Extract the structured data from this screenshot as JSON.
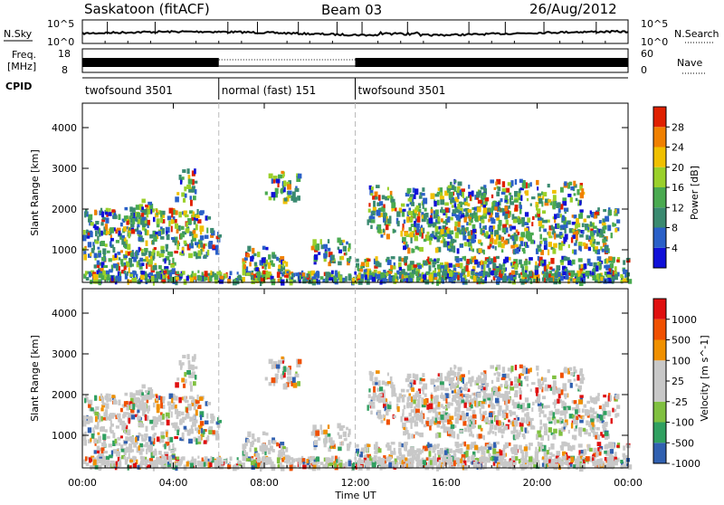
{
  "header": {
    "station": "Saskatoon (fitACF)",
    "beam": "Beam 03",
    "date": "26/Aug/2012"
  },
  "panel_labels": {
    "nsky": "N.Sky",
    "nsearch": "N.Search",
    "freq_line1": "Freq.",
    "freq_line2": "[MHz]",
    "nave": "Nave",
    "cpid": "CPID"
  },
  "noise_ticks_left": [
    "10^5",
    "10^0"
  ],
  "noise_ticks_right": [
    "10^5",
    "10^0"
  ],
  "freq_ticks_left": [
    "18",
    "8"
  ],
  "freq_ticks_right": [
    "60",
    "0"
  ],
  "cpid_segments": [
    {
      "label": "twofsound 3501",
      "start": 0,
      "end": 6
    },
    {
      "label": "normal (fast) 151",
      "start": 6,
      "end": 12
    },
    {
      "label": "twofsound 3501",
      "start": 12,
      "end": 24
    }
  ],
  "colors": {
    "power": [
      "#1010d8",
      "#2a60c8",
      "#3a8a70",
      "#4aaa50",
      "#9ad02a",
      "#f0c000",
      "#f08000",
      "#e02000"
    ],
    "velocity": [
      "#3060b0",
      "#30a060",
      "#80c040",
      "#c8c8c8",
      "#c8c8c8",
      "#f09000",
      "#f05000",
      "#e01010"
    ]
  },
  "chart_data": [
    {
      "type": "heatmap",
      "panel": "power",
      "ylabel": "Slant Range [km]",
      "yticks": [
        "1000",
        "2000",
        "3000",
        "4000"
      ],
      "ylim": [
        200,
        4600
      ],
      "colorbar_label": "Power [dB]",
      "colorbar_ticks": [
        "4",
        "8",
        "12",
        "16",
        "20",
        "24",
        "28"
      ],
      "clim": [
        0,
        32
      ]
    },
    {
      "type": "heatmap",
      "panel": "velocity",
      "ylabel": "Slant Range [km]",
      "yticks": [
        "1000",
        "2000",
        "3000",
        "4000"
      ],
      "ylim": [
        200,
        4600
      ],
      "colorbar_label": "Velocity [m s^-1]",
      "colorbar_ticks": [
        "1000",
        "500",
        "100",
        "25",
        "-25",
        "-100",
        "-500",
        "-1000"
      ]
    }
  ],
  "time_axis": {
    "label": "Time UT",
    "ticks": [
      "00:00",
      "04:00",
      "08:00",
      "12:00",
      "16:00",
      "20:00",
      "00:00"
    ],
    "range_hours": [
      0,
      24
    ]
  }
}
